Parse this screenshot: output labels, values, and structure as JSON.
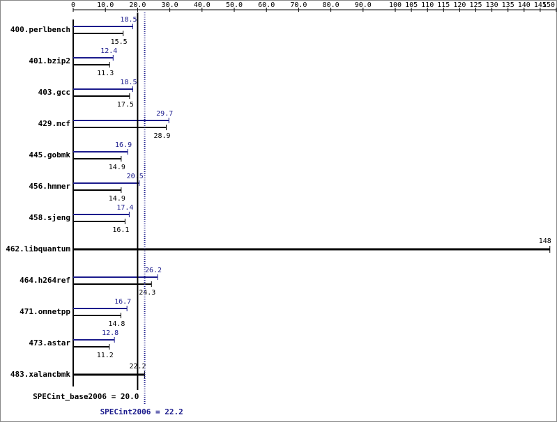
{
  "chart_data": {
    "type": "bar",
    "categories": [
      "400.perlbench",
      "401.bzip2",
      "403.gcc",
      "429.mcf",
      "445.gobmk",
      "456.hmmer",
      "458.sjeng",
      "462.libquantum",
      "464.h264ref",
      "471.omnetpp",
      "473.astar",
      "483.xalancbmk"
    ],
    "series": [
      {
        "color": "#1a1a8c",
        "values": [
          18.5,
          12.4,
          18.5,
          29.7,
          16.9,
          20.5,
          17.4,
          null,
          26.2,
          16.7,
          12.8,
          null
        ]
      },
      {
        "color": "#000000",
        "values": [
          15.5,
          11.3,
          17.5,
          28.9,
          14.9,
          14.9,
          16.1,
          148,
          24.3,
          14.8,
          11.2,
          22.2
        ]
      }
    ],
    "xlim": [
      0,
      150
    ],
    "xticks": [
      0,
      {
        "value": 10,
        "label": "10.0"
      },
      {
        "value": 20,
        "label": "20.0"
      },
      {
        "value": 30,
        "label": "30.0"
      },
      {
        "value": 40,
        "label": "40.0"
      },
      {
        "value": 50,
        "label": "50.0"
      },
      {
        "value": 60,
        "label": "60.0"
      },
      {
        "value": 70,
        "label": "70.0"
      },
      {
        "value": 80,
        "label": "80.0"
      },
      {
        "value": 90,
        "label": "90.0"
      },
      100,
      105,
      110,
      115,
      120,
      125,
      130,
      135,
      140,
      145,
      150
    ],
    "reference_lines": [
      {
        "label": "SPECint_base2006 = 20.0",
        "value": 20,
        "color": "#000000",
        "style": "solid"
      },
      {
        "label": "SPECint2006 = 22.2",
        "value": 22.2,
        "color": "#1a1a8c",
        "style": "dotted"
      }
    ]
  }
}
